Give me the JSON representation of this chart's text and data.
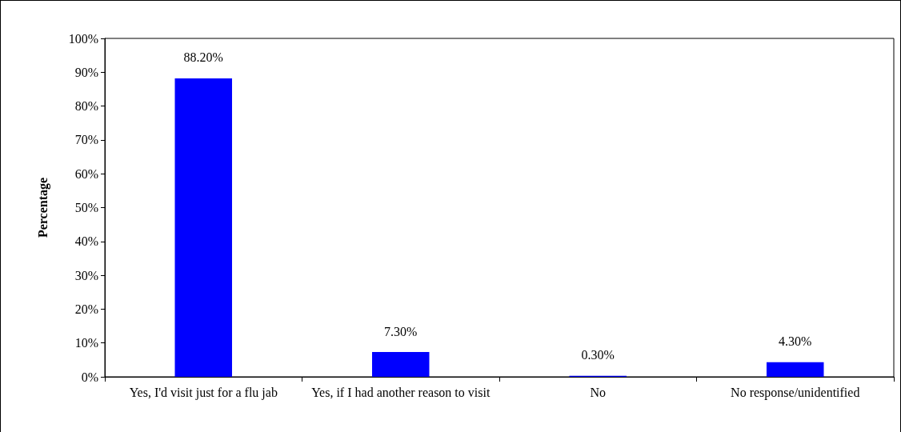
{
  "chart_data": {
    "type": "bar",
    "ylabel": "Percentage",
    "categories": [
      "Yes, I'd visit just for a flu jab",
      "Yes, if I had another reason to visit",
      "No",
      "No response/unidentified"
    ],
    "values": [
      88.2,
      7.3,
      0.3,
      4.3
    ],
    "color": "#0000ff",
    "value_labels": [
      "88.20%",
      "7.30%",
      "0.30%",
      "4.30%"
    ],
    "ylim": [
      0,
      100
    ],
    "yticks": [
      {
        "value": 0,
        "label": "0%"
      },
      {
        "value": 10,
        "label": "10%"
      },
      {
        "value": 20,
        "label": "20%"
      },
      {
        "value": 30,
        "label": "30%"
      },
      {
        "value": 40,
        "label": "40%"
      },
      {
        "value": 50,
        "label": "50%"
      },
      {
        "value": 60,
        "label": "60%"
      },
      {
        "value": 70,
        "label": "70%"
      },
      {
        "value": 80,
        "label": "80%"
      },
      {
        "value": 90,
        "label": "90%"
      },
      {
        "value": 100,
        "label": "100%"
      }
    ],
    "grid": false
  }
}
